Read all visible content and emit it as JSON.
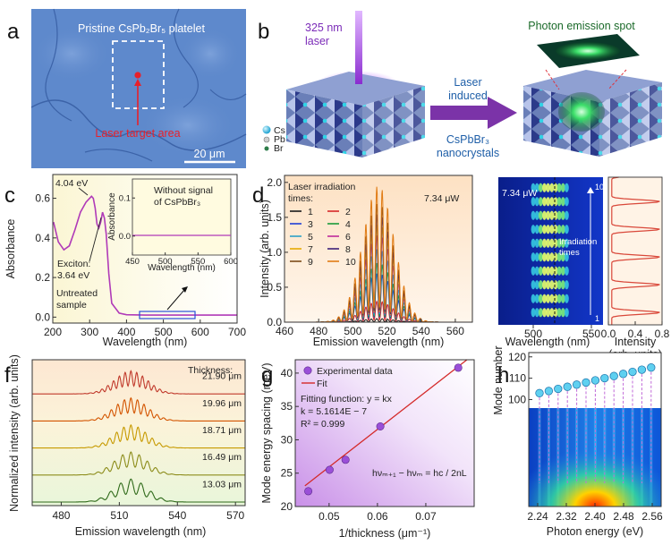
{
  "panel_labels": [
    "a",
    "b",
    "c",
    "d",
    "e",
    "f",
    "g",
    "h"
  ],
  "panel_a": {
    "title": "Pristine CsPb₂Br₅ platelet",
    "target_label": "Laser target area",
    "scale_bar": "20 μm"
  },
  "panel_b": {
    "laser_line1": "325 nm",
    "laser_line2": "laser",
    "arrow_top1": "Laser",
    "arrow_top2": "induced",
    "arrow_bot1": "CsPbBr₃",
    "arrow_bot2": "nanocrystals",
    "spot_label": "Photon emission spot",
    "legend": [
      "Cs",
      "Pb",
      "Br"
    ]
  },
  "panel_c": {
    "ylabel": "Absorbance",
    "xlabel": "Wavelength (nm)",
    "xticks": [
      "200",
      "300",
      "400",
      "500",
      "600",
      "700"
    ],
    "yticks": [
      "0.0",
      "0.2",
      "0.4",
      "0.6"
    ],
    "peak_label": "4.04 eV",
    "exciton_line1": "Exciton:",
    "exciton_line2": "3.64 eV",
    "sample_line1": "Untreated",
    "sample_line2": "sample",
    "inset": {
      "ylabel": "Absorbance",
      "xlabel": "Wavelength (nm)",
      "note_line1": "Without signal",
      "note_line2": "of CsPbBr₃",
      "xticks": [
        "450",
        "500",
        "550",
        "600"
      ],
      "yticks": [
        "0.0",
        "0.1"
      ]
    }
  },
  "panel_d": {
    "ylabel": "Intensity (arb. units)",
    "xlabel": "Emission wavelength (nm)",
    "power": "7.34 μW",
    "legend_title1": "Laser irradiation",
    "legend_title2": "times:",
    "xticks": [
      "460",
      "480",
      "500",
      "520",
      "540",
      "560"
    ],
    "yticks": [
      "0.0",
      "0.5",
      "1.0",
      "1.5",
      "2.0"
    ],
    "legend": [
      {
        "label": "1",
        "color": "#1a1a1a"
      },
      {
        "label": "2",
        "color": "#d62728"
      },
      {
        "label": "3",
        "color": "#1f3fd6"
      },
      {
        "label": "4",
        "color": "#1a9a3a"
      },
      {
        "label": "5",
        "color": "#2ca0c8"
      },
      {
        "label": "6",
        "color": "#c02a9b"
      },
      {
        "label": "7",
        "color": "#e6a800"
      },
      {
        "label": "8",
        "color": "#3d1f78"
      },
      {
        "label": "9",
        "color": "#7b4a1a"
      },
      {
        "label": "10",
        "color": "#e07b14"
      }
    ]
  },
  "panel_e": {
    "power": "7.34 μW",
    "rotated_label1": "Irradiation",
    "rotated_label2": "times",
    "xlabel1": "Wavelength (nm)",
    "xlabel2_line1": "Intensity",
    "xlabel2_line2": "(arb. units)",
    "xticks": [
      "500",
      "550"
    ],
    "xticks2": [
      "0.0",
      "0.4",
      "0.8"
    ],
    "row_top": "10",
    "row_bottom": "1"
  },
  "panel_f": {
    "ylabel": "Normalized intensity (arb. units)",
    "xlabel": "Emission wavelength (nm)",
    "thickness_title": "Thickness:",
    "thickness": [
      "21.90 μm",
      "19.96 μm",
      "18.71 μm",
      "16.49 μm",
      "13.03 μm"
    ],
    "colors": [
      "#c0392b",
      "#d35400",
      "#c79a00",
      "#8c8c1a",
      "#2f6b1a"
    ],
    "xticks": [
      "480",
      "510",
      "540",
      "570"
    ]
  },
  "panel_g": {
    "ylabel": "Mode energy spacing (meV)",
    "xlabel": "1/thickness (μm⁻¹)",
    "legend_data": "Experimental data",
    "legend_fit": "Fit",
    "fit_function": "Fitting function: y = kx",
    "k": "k = 5.1614E − 7",
    "r2": "R² = 0.999",
    "formula": "hνₘ₊₁ − hνₘ = hc / 2nL",
    "xticks": [
      "0.05",
      "0.06",
      "0.07"
    ],
    "yticks": [
      "20",
      "25",
      "30",
      "35",
      "40"
    ]
  },
  "panel_h": {
    "ylabel": "Mode number",
    "xlabel": "Photon energy (eV)",
    "xticks": [
      "2.24",
      "2.32",
      "2.40",
      "2.48",
      "2.56"
    ],
    "yticks": [
      "100",
      "110",
      "120"
    ]
  },
  "chart_data": [
    {
      "id": "c",
      "type": "line",
      "title": "",
      "xlabel": "Wavelength (nm)",
      "ylabel": "Absorbance",
      "xlim": [
        200,
        700
      ],
      "ylim": [
        -0.03,
        0.72
      ],
      "series": [
        {
          "name": "Untreated sample",
          "color": "#b03ab8",
          "x": [
            202,
            215,
            230,
            245,
            260,
            275,
            290,
            300,
            305,
            310,
            315,
            320,
            325,
            330,
            335,
            340,
            345,
            352,
            360,
            380,
            400,
            450,
            500,
            550,
            600,
            700
          ],
          "y": [
            0.48,
            0.38,
            0.34,
            0.36,
            0.44,
            0.53,
            0.58,
            0.6,
            0.61,
            0.6,
            0.55,
            0.47,
            0.45,
            0.48,
            0.53,
            0.5,
            0.42,
            0.22,
            0.07,
            0.02,
            0.012,
            0.01,
            0.01,
            0.01,
            0.01,
            0.01
          ]
        }
      ]
    },
    {
      "id": "c-inset",
      "type": "line",
      "xlabel": "Wavelength (nm)",
      "ylabel": "Absorbance",
      "xlim": [
        450,
        600
      ],
      "ylim": [
        -0.05,
        0.15
      ],
      "series": [
        {
          "name": "Untreated sample",
          "x": [
            450,
            500,
            550,
            600
          ],
          "y": [
            0.0,
            0.0,
            0.0,
            0.0
          ]
        }
      ]
    },
    {
      "id": "d",
      "type": "line",
      "xlabel": "Emission wavelength (nm)",
      "ylabel": "Intensity (arb. units)",
      "xlim": [
        460,
        570
      ],
      "ylim": [
        0,
        2.1
      ],
      "envelope_center_nm": 515,
      "envelope_width_nm": 13,
      "fringe_period_nm": 3.2,
      "series": [
        {
          "name": "1",
          "peak": 0.05
        },
        {
          "name": "2",
          "peak": 0.3
        },
        {
          "name": "3",
          "peak": 0.7
        },
        {
          "name": "4",
          "peak": 0.85
        },
        {
          "name": "5",
          "peak": 1.05
        },
        {
          "name": "6",
          "peak": 1.25
        },
        {
          "name": "7",
          "peak": 1.4
        },
        {
          "name": "8",
          "peak": 1.55
        },
        {
          "name": "9",
          "peak": 1.7
        },
        {
          "name": "10",
          "peak": 1.95
        }
      ]
    },
    {
      "id": "e",
      "type": "heatmap",
      "xlabel": "Wavelength (nm)",
      "xlim": [
        470,
        560
      ],
      "rows": [
        "1",
        "2",
        "3",
        "4",
        "5",
        "6",
        "7",
        "8",
        "9",
        "10"
      ],
      "fringe_period_nm": 3.2,
      "center_nm": 515
    },
    {
      "id": "e-profile",
      "type": "line",
      "xlabel": "Intensity (arb. units)",
      "xlim": [
        0,
        0.8
      ],
      "peaks": 10
    },
    {
      "id": "f",
      "type": "line",
      "xlabel": "Emission wavelength (nm)",
      "ylabel": "Normalized intensity (arb. units)",
      "xlim": [
        465,
        575
      ],
      "series": [
        {
          "name": "21.90 μm",
          "spacing_nm": 3.0
        },
        {
          "name": "19.96 μm",
          "spacing_nm": 3.4
        },
        {
          "name": "18.71 μm",
          "spacing_nm": 3.7
        },
        {
          "name": "16.49 μm",
          "spacing_nm": 4.3
        },
        {
          "name": "13.03 μm",
          "spacing_nm": 5.3
        }
      ]
    },
    {
      "id": "g",
      "type": "scatter",
      "xlabel": "1/thickness (μm⁻¹)",
      "ylabel": "Mode energy spacing (meV)",
      "xlim": [
        0.043,
        0.08
      ],
      "ylim": [
        20,
        42
      ],
      "points": {
        "x": [
          0.0457,
          0.0501,
          0.0534,
          0.0606,
          0.0767
        ],
        "y": [
          22.3,
          25.5,
          27.0,
          32.0,
          40.8
        ]
      },
      "fit": {
        "slope_meV_per_um_inv": 531.5,
        "x": [
          0.045,
          0.0785
        ],
        "y": [
          23.1,
          42.0
        ]
      }
    },
    {
      "id": "h",
      "type": "scatter",
      "xlabel": "Photon energy (eV)",
      "ylabel": "Mode number",
      "xlim": [
        2.215,
        2.585
      ],
      "ylim": [
        96,
        122
      ],
      "points": {
        "x": [
          2.245,
          2.271,
          2.297,
          2.323,
          2.349,
          2.375,
          2.401,
          2.427,
          2.453,
          2.479,
          2.505,
          2.531,
          2.557
        ],
        "y": [
          103,
          104,
          105,
          106,
          107,
          108,
          109,
          110,
          111,
          112,
          113,
          114,
          115
        ]
      }
    }
  ]
}
